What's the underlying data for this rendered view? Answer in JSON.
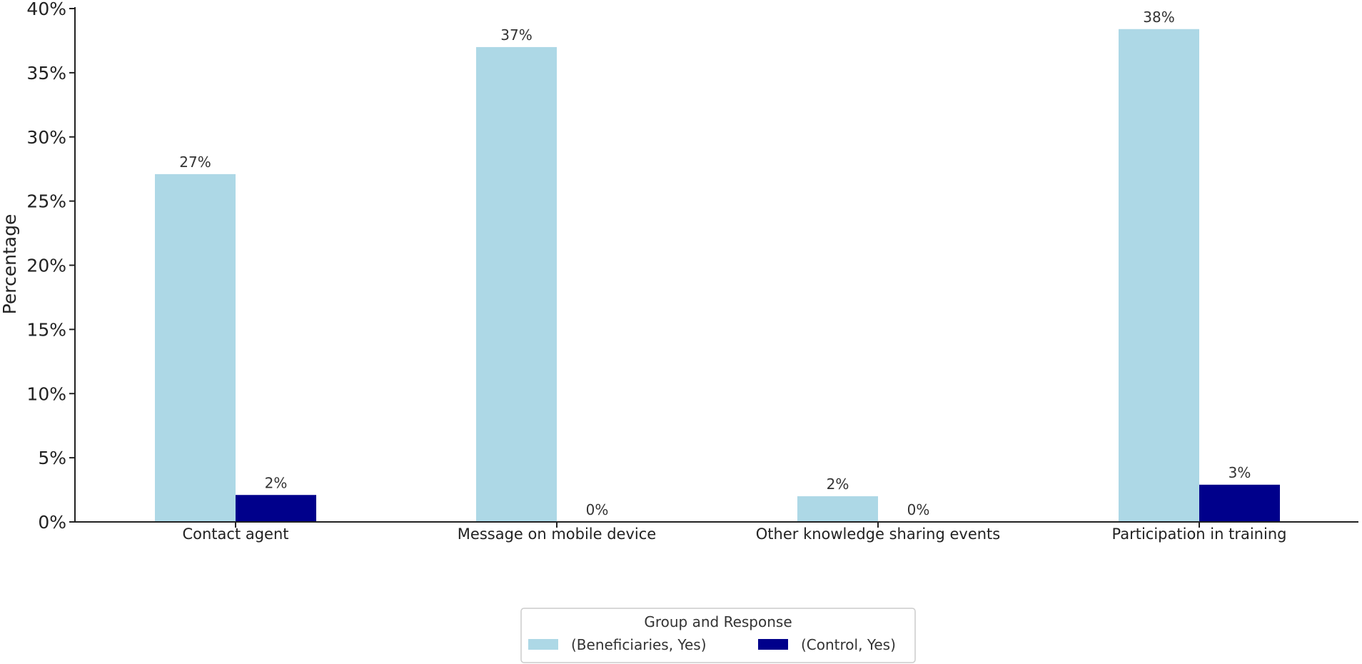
{
  "chart_data": {
    "type": "bar",
    "categories": [
      "Contact agent",
      "Message on mobile device",
      "Other knowledge sharing events",
      "Participation in training"
    ],
    "series": [
      {
        "name": "(Beneficiaries, Yes)",
        "values": [
          27.1,
          37.0,
          2.0,
          38.4
        ],
        "labels": [
          "27%",
          "37%",
          "2%",
          "38%"
        ],
        "color": "#add8e6"
      },
      {
        "name": "(Control, Yes)",
        "values": [
          2.1,
          0,
          0,
          2.9
        ],
        "labels": [
          "2%",
          "0%",
          "0%",
          "3%"
        ],
        "color": "#00008b"
      }
    ],
    "xlabel": "",
    "ylabel": "Percentage",
    "ylim": [
      0,
      40
    ],
    "yticks": [
      0,
      5,
      10,
      15,
      20,
      25,
      30,
      35,
      40
    ],
    "ytick_labels": [
      "0%",
      "5%",
      "10%",
      "15%",
      "20%",
      "25%",
      "30%",
      "35%",
      "40%"
    ],
    "grid": false,
    "legend": {
      "title": "Group and Response",
      "placement": "bottom-center"
    }
  }
}
